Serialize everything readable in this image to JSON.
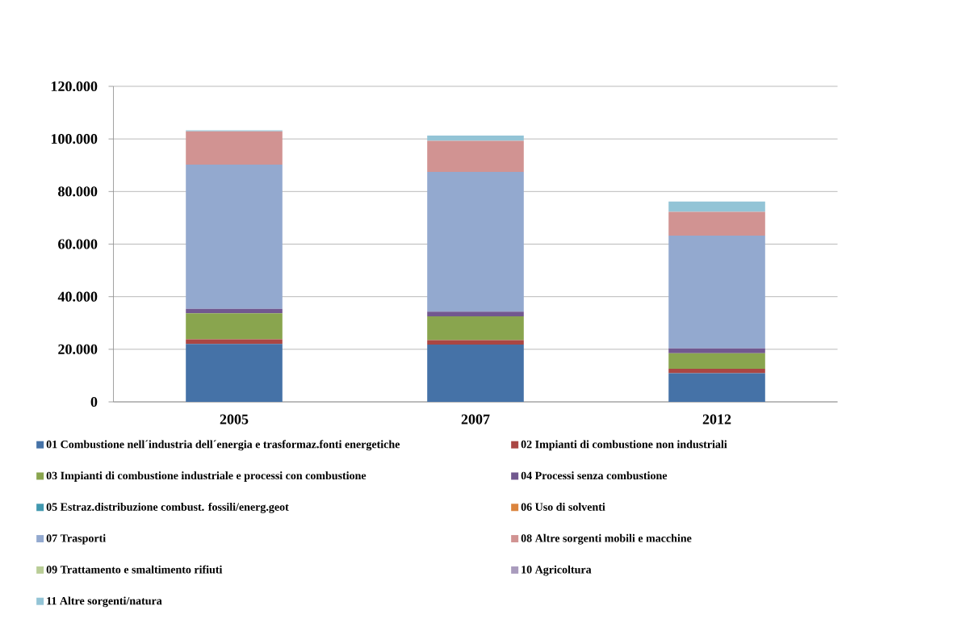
{
  "chart_data": {
    "type": "bar",
    "stacked": true,
    "categories": [
      "2005",
      "2007",
      "2012"
    ],
    "series": [
      {
        "name": "01 Combustione nell´industria dell´energia e trasformaz.fonti energetiche",
        "color": "#4572a7",
        "values": [
          22000,
          21800,
          10900
        ]
      },
      {
        "name": "02 Impianti di combustione non industriali",
        "color": "#aa4643",
        "values": [
          1800,
          1700,
          1700
        ]
      },
      {
        "name": "03 Impianti di combustione industriale e processi con combustione",
        "color": "#89a54e",
        "values": [
          9900,
          9000,
          5900
        ]
      },
      {
        "name": "04 Processi senza combustione",
        "color": "#71588f",
        "values": [
          1700,
          1800,
          1800
        ]
      },
      {
        "name": "05 Estraz.distribuzione combust. fossili/energ.geot",
        "color": "#4198af",
        "values": [
          null,
          null,
          null
        ]
      },
      {
        "name": "06 Uso di solventi",
        "color": "#db843d",
        "values": [
          null,
          null,
          null
        ]
      },
      {
        "name": "07 Trasporti",
        "color": "#93a9cf",
        "values": [
          54800,
          53200,
          42900
        ]
      },
      {
        "name": "08 Altre sorgenti mobili e macchine",
        "color": "#d19392",
        "values": [
          12700,
          11800,
          9100
        ]
      },
      {
        "name": "09 Trattamento e smaltimento rifiuti",
        "color": "#b9cd96",
        "values": [
          null,
          null,
          null
        ]
      },
      {
        "name": "10 Agricoltura",
        "color": "#a99bbd",
        "values": [
          null,
          null,
          null
        ]
      },
      {
        "name": "11 Altre sorgenti/natura",
        "color": "#93c4d6",
        "values": [
          400,
          2000,
          3900
        ]
      }
    ],
    "ylim": [
      0,
      120000
    ],
    "yticks": [
      0,
      {
        "value": 20000,
        "label": "20.000"
      },
      {
        "value": 40000,
        "label": "40.000"
      },
      {
        "value": 60000,
        "label": "60.000"
      },
      {
        "value": 80000,
        "label": "80.000"
      },
      {
        "value": 100000,
        "label": "100.000"
      },
      {
        "value": 120000,
        "label": "120.000"
      }
    ],
    "grid": "y",
    "legend": "bottom"
  }
}
